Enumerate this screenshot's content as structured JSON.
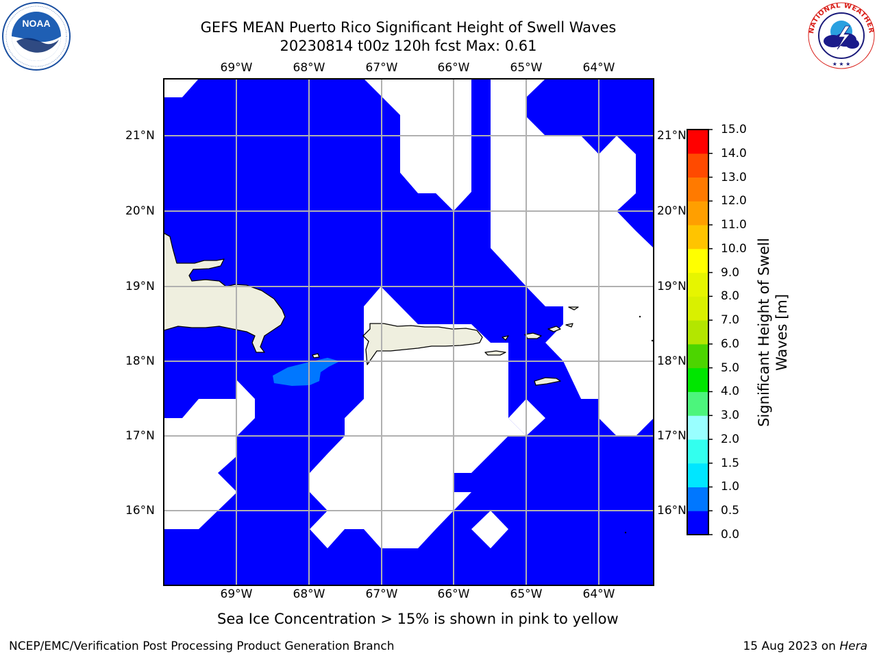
{
  "title": {
    "line1": "GEFS MEAN Puerto Rico Significant Height of Swell Waves",
    "line2": "20230814 t00z 120h fcst   Max: 0.61"
  },
  "logos": {
    "noaa": {
      "icon": "noaa-logo",
      "text": "NOAA",
      "ring_text": "NATIONAL OCEANIC AND ATMOSPHERIC ADMINISTRATION · U.S. DEPARTMENT OF COMMERCE"
    },
    "nws": {
      "icon": "nws-logo",
      "ring_text": "NATIONAL WEATHER SERVICE"
    }
  },
  "map": {
    "projection": "lat-lon",
    "extent": {
      "lon_min": -69.96,
      "lon_max": -63.2,
      "lat_min": 15.0,
      "lat_max": 21.75
    },
    "grid": true,
    "lon_ticks": [
      "69°W",
      "68°W",
      "67°W",
      "66°W",
      "65°W",
      "64°W"
    ],
    "lat_ticks": [
      "21°N",
      "20°N",
      "19°N",
      "18°N",
      "17°N",
      "16°N"
    ],
    "colors": {
      "ocean_fill": "#0000ff",
      "land": "#efefdf",
      "background": "#ffffff",
      "grid": "#b0b0b0"
    },
    "features": [
      "Hispaniola",
      "Puerto Rico",
      "Virgin Islands"
    ]
  },
  "colorbar": {
    "title_line1": "Significant Height of Swell",
    "title_line2": "Waves [m]",
    "labels": [
      "15.0",
      "14.0",
      "13.0",
      "12.0",
      "11.0",
      "10.0",
      "9.0",
      "8.0",
      "7.0",
      "6.0",
      "5.0",
      "4.0",
      "3.0",
      "2.0",
      "1.5",
      "1.0",
      "0.5",
      "0.0"
    ],
    "bins": [
      {
        "from": 0.0,
        "to": 0.5,
        "color": "#0000ff"
      },
      {
        "from": 0.5,
        "to": 1.0,
        "color": "#0077ff"
      },
      {
        "from": 1.0,
        "to": 1.5,
        "color": "#00e6ff"
      },
      {
        "from": 1.5,
        "to": 2.0,
        "color": "#33ffee"
      },
      {
        "from": 2.0,
        "to": 3.0,
        "color": "#99ffff"
      },
      {
        "from": 3.0,
        "to": 4.0,
        "color": "#4cf57c"
      },
      {
        "from": 4.0,
        "to": 5.0,
        "color": "#00e600"
      },
      {
        "from": 5.0,
        "to": 6.0,
        "color": "#4cd500"
      },
      {
        "from": 6.0,
        "to": 7.0,
        "color": "#b3e600"
      },
      {
        "from": 7.0,
        "to": 8.0,
        "color": "#d9f000"
      },
      {
        "from": 8.0,
        "to": 9.0,
        "color": "#e6f500"
      },
      {
        "from": 9.0,
        "to": 10.0,
        "color": "#ffff00"
      },
      {
        "from": 10.0,
        "to": 11.0,
        "color": "#ffc400"
      },
      {
        "from": 11.0,
        "to": 12.0,
        "color": "#ff9f00"
      },
      {
        "from": 12.0,
        "to": 13.0,
        "color": "#ff7a00"
      },
      {
        "from": 13.0,
        "to": 14.0,
        "color": "#ff4a00"
      },
      {
        "from": 14.0,
        "to": 15.0,
        "color": "#ff0000"
      }
    ]
  },
  "notes": {
    "sea_ice": "Sea Ice Concentration > 15% is shown in pink to yellow"
  },
  "footer": {
    "left": "NCEP/EMC/Verification Post Processing Product Generation Branch",
    "date": "15 Aug 2023 on ",
    "host": "Hera"
  }
}
